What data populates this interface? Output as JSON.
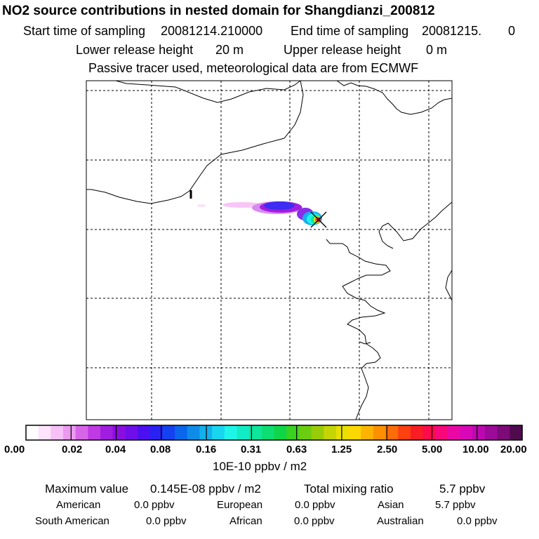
{
  "header": {
    "title": "NO2 source contributions in nested domain for Shangdianzi_200812",
    "start_label": "Start time of sampling",
    "start_value": "20081214.210000",
    "end_label": "End time of sampling",
    "end_value": "20081215.",
    "end_suffix": "0",
    "lower_label": "Lower release height",
    "lower_value": "20 m",
    "upper_label": "Upper release height",
    "upper_value": "0 m",
    "note": "Passive tracer used, meteorological data are from ECMWF"
  },
  "map": {
    "receptor_marker": "x-marker-icon",
    "border_label": "1"
  },
  "colorbar": {
    "colors": [
      "#ffffff",
      "#fde3fb",
      "#f7c1f7",
      "#eb9af0",
      "#d665e8",
      "#bf3ae3",
      "#a11de0",
      "#8a0ee0",
      "#6f0ee8",
      "#4a10f0",
      "#2a22f2",
      "#1442f0",
      "#0a67ec",
      "#0f8ce8",
      "#14b0ec",
      "#18d6f0",
      "#1ef5e8",
      "#12ecc4",
      "#0ee69c",
      "#0cde72",
      "#0fd648",
      "#3ad220",
      "#6ccc10",
      "#98cc08",
      "#c4d404",
      "#e8e000",
      "#fcd800",
      "#fcb400",
      "#fc9000",
      "#fc6c08",
      "#fc4010",
      "#f81e24",
      "#ff0a4a",
      "#f8087a",
      "#ea08a4",
      "#d808b8",
      "#bc08b0",
      "#9c0a98",
      "#7c0a78",
      "#500a4e"
    ],
    "ticks": [
      "0.00",
      "0.02",
      "0.04",
      "0.08",
      "0.16",
      "0.31",
      "0.63",
      "1.25",
      "2.50",
      "5.00",
      "10.00",
      "20.00"
    ],
    "units": "10E-10 ppbv / m2"
  },
  "footer": {
    "max_label": "Maximum value",
    "max_value": "0.145E-08 ppbv / m2",
    "total_label": "Total mixing ratio",
    "total_value": "5.7 ppbv",
    "sources": [
      {
        "label": "American",
        "value": "0.0 ppbv"
      },
      {
        "label": "European",
        "value": "0.0 ppbv"
      },
      {
        "label": "Asian",
        "value": "5.7 ppbv"
      },
      {
        "label": "South American",
        "value": "0.0 ppbv"
      },
      {
        "label": "African",
        "value": "0.0 ppbv"
      },
      {
        "label": "Australian",
        "value": "0.0 ppbv"
      }
    ]
  }
}
